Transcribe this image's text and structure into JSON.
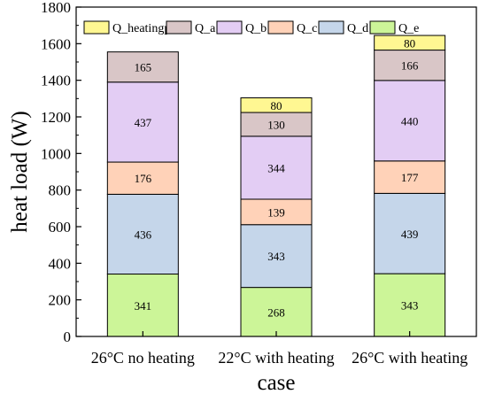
{
  "chart_data": {
    "type": "bar",
    "stacked": true,
    "title": "",
    "xlabel": "case",
    "ylabel": "heat load (W)",
    "ylim": [
      0,
      1800
    ],
    "yticks": [
      0,
      200,
      400,
      600,
      800,
      1000,
      1200,
      1400,
      1600,
      1800
    ],
    "categories": [
      "26°C no heating",
      "22°C with heating",
      "26°C with heating"
    ],
    "series": [
      {
        "name": "Q_e",
        "color": "#ccf598",
        "values": [
          341,
          268,
          343
        ]
      },
      {
        "name": "Q_d",
        "color": "#c5d6ea",
        "values": [
          436,
          343,
          439
        ]
      },
      {
        "name": "Q_c",
        "color": "#ffd2b8",
        "values": [
          176,
          139,
          177
        ]
      },
      {
        "name": "Q_b",
        "color": "#e3cdf4",
        "values": [
          437,
          344,
          440
        ]
      },
      {
        "name": "Q_a",
        "color": "#d9c6c7",
        "values": [
          165,
          130,
          166
        ]
      },
      {
        "name": "Q_heatingpad",
        "color": "#fff792",
        "values": [
          null,
          80,
          80
        ]
      }
    ],
    "legend_order": [
      "Q_heatingpad",
      "Q_a",
      "Q_b",
      "Q_c",
      "Q_d",
      "Q_e"
    ],
    "legend_position": "top",
    "grid": false
  }
}
